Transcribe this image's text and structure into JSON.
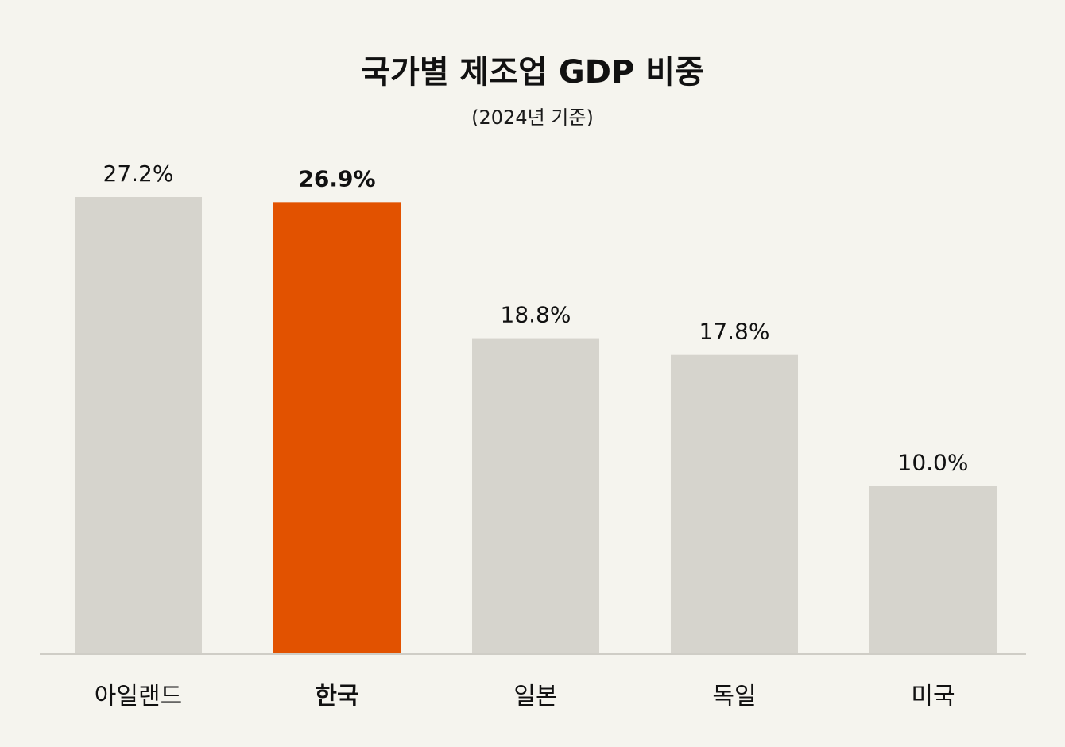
{
  "colors": {
    "background": "#f5f4ee",
    "bar_default": "#d6d4cd",
    "bar_highlight": "#e25200",
    "text": "#111111",
    "baseline": "#cfcdc6"
  },
  "chart_data": {
    "type": "bar",
    "title": "국가별 제조업 GDP 비중",
    "subtitle": "(2024년 기준)",
    "xlabel": "",
    "ylabel": "",
    "categories": [
      "아일랜드",
      "한국",
      "일본",
      "독일",
      "미국"
    ],
    "values": [
      27.2,
      26.9,
      18.8,
      17.8,
      10.0
    ],
    "value_labels": [
      "27.2%",
      "26.9%",
      "18.8%",
      "17.8%",
      "10.0%"
    ],
    "highlight_category": "한국",
    "ylim": [
      0,
      27.2
    ],
    "grid": false,
    "legend": "none"
  }
}
